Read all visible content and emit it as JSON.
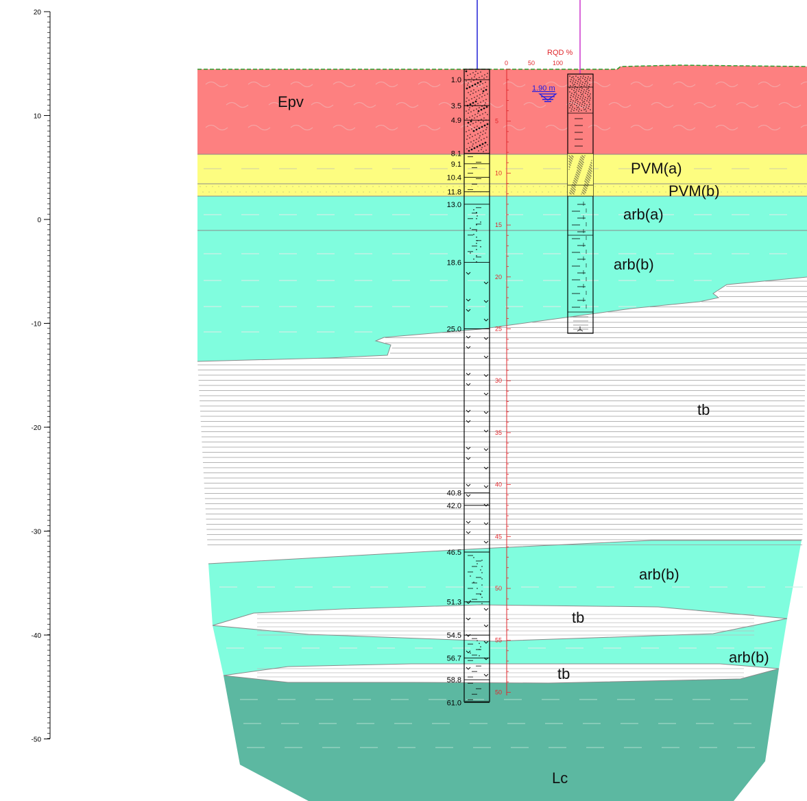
{
  "elevation_axis": {
    "ticks": [
      "20",
      "10",
      "0",
      "-10",
      "-20",
      "-30",
      "-40",
      "-50"
    ]
  },
  "rqd_header": {
    "title": "RQD %",
    "ticks": [
      "0",
      "50",
      "100"
    ]
  },
  "depth_scale": {
    "labels": [
      "5",
      "10",
      "15",
      "20",
      "25",
      "30",
      "35",
      "40",
      "45",
      "50",
      "55",
      "50"
    ]
  },
  "water_level": {
    "label": "1.90 m",
    "color": "#1a1ae6"
  },
  "borehole_depths": [
    "1.0",
    "3.5",
    "4.9",
    "8.1",
    "9.1",
    "10.4",
    "11.8",
    "13.0",
    "18.6",
    "25.0",
    "40.8",
    "42.0",
    "46.5",
    "51.3",
    "54.5",
    "56.7",
    "58.8",
    "61.0"
  ],
  "units": {
    "epv": "Epv",
    "pvm_a": "PVM(a)",
    "pvm_b": "PVM(b)",
    "arb_a": "arb(a)",
    "arb_b_upper": "arb(b)",
    "tb_main": "tb",
    "arb_b_mid": "arb(b)",
    "tb_mid": "tb",
    "arb_b_low": "arb(b)",
    "tb_low": "tb",
    "lc": "Lc"
  },
  "colors": {
    "epv": "#fd8080",
    "pvm": "#fdfd80",
    "arb": "#80fdde",
    "tb": "#ffffff",
    "lc": "#5cb8a1",
    "ground_line": "#2e9c2e",
    "left_borehole_line": "#1f1fd6",
    "right_borehole_line": "#cc33cc",
    "depth_scale": "#e0262b"
  }
}
